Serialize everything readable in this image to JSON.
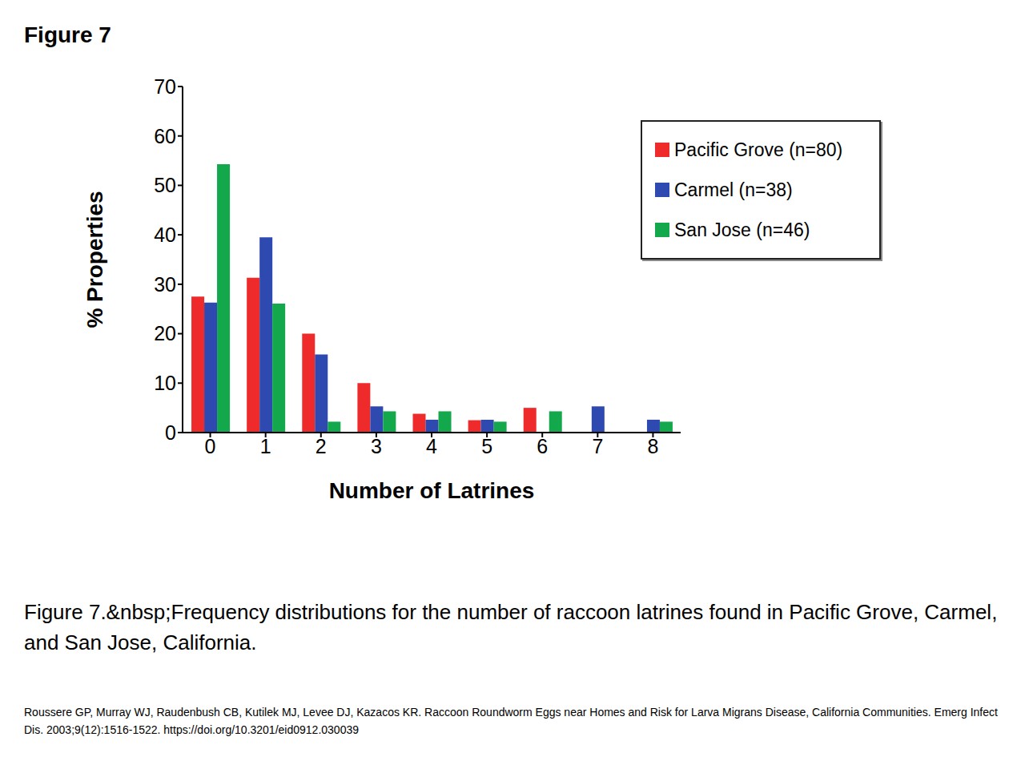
{
  "chart_data": {
    "type": "bar",
    "title": "Figure 7",
    "caption": "Figure 7.&nbsp;Frequency distributions for the number of raccoon latrines found in Pacific Grove, Carmel, and San Jose, California.",
    "source": "Roussere GP, Murray WJ, Raudenbush CB, Kutilek MJ, Levee DJ, Kazacos KR. Raccoon Roundworm Eggs near Homes and Risk for Larva Migrans Disease, California Communities. Emerg Infect Dis. 2003;9(12):1516-1522. https://doi.org/10.3201/eid0912.030039",
    "x_label": "Number of Latrines",
    "y_label": "% Properties",
    "categories": [
      "0",
      "1",
      "2",
      "3",
      "4",
      "5",
      "6",
      "7",
      "8"
    ],
    "series": [
      {
        "name": "Pacific Grove (n=80)",
        "color": "#ee2a2a",
        "values": [
          27.5,
          31.3,
          20,
          10,
          3.8,
          2.5,
          5,
          0,
          0
        ]
      },
      {
        "name": "Carmel (n=38)",
        "color": "#2e4ab0",
        "values": [
          26.3,
          39.5,
          15.8,
          5.3,
          2.6,
          2.6,
          0,
          5.3,
          2.6
        ]
      },
      {
        "name": "San Jose (n=46)",
        "color": "#13a84c",
        "values": [
          54.3,
          26.1,
          2.2,
          4.3,
          4.3,
          2.2,
          4.3,
          0,
          2.2
        ]
      }
    ],
    "ylim": [
      0,
      70
    ],
    "yticks": [
      0,
      10,
      20,
      30,
      40,
      50,
      60,
      70
    ],
    "grid": false,
    "legend": "upper right"
  }
}
